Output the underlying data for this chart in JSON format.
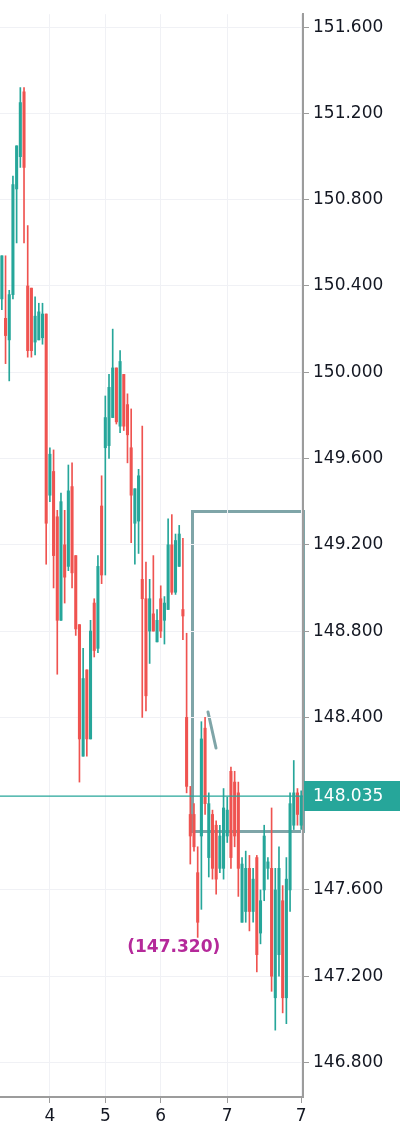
{
  "chart_data": {
    "type": "candlestick",
    "categories": [
      null,
      null,
      null,
      null,
      null,
      null,
      null,
      null,
      null,
      null,
      null,
      null,
      null,
      "4",
      null,
      null,
      null,
      null,
      null,
      null,
      null,
      null,
      null,
      null,
      null,
      null,
      null,
      null,
      "5",
      null,
      null,
      null,
      null,
      null,
      null,
      null,
      null,
      null,
      null,
      null,
      null,
      null,
      null,
      "6",
      null,
      null,
      null,
      null,
      null,
      null,
      null,
      null,
      null,
      null,
      null,
      null,
      null,
      null,
      null,
      null,
      null,
      "7",
      null,
      null,
      null,
      null,
      null,
      null,
      null,
      null,
      null,
      null,
      null,
      null,
      null,
      null,
      null,
      null,
      null,
      null,
      null,
      "7"
    ],
    "ohlc": [
      [
        150.34,
        150.54,
        150.29,
        150.54
      ],
      [
        150.25,
        150.54,
        150.04,
        150.17
      ],
      [
        150.15,
        150.38,
        149.96,
        150.36
      ],
      [
        150.36,
        150.91,
        150.34,
        150.87
      ],
      [
        150.85,
        151.05,
        150.6,
        151.05
      ],
      [
        151.0,
        151.32,
        150.95,
        151.25
      ],
      [
        151.3,
        151.32,
        150.6,
        150.95
      ],
      [
        150.4,
        150.68,
        150.07,
        150.1
      ],
      [
        150.39,
        150.39,
        150.07,
        150.1
      ],
      [
        150.14,
        150.35,
        150.08,
        150.26
      ],
      [
        150.15,
        150.32,
        150.15,
        150.28
      ],
      [
        150.16,
        150.32,
        150.13,
        150.27
      ],
      [
        150.27,
        150.27,
        149.11,
        149.3
      ],
      [
        149.43,
        149.65,
        149.4,
        149.62
      ],
      [
        149.54,
        149.64,
        149.0,
        149.15
      ],
      [
        149.33,
        149.36,
        148.6,
        148.85
      ],
      [
        148.85,
        149.44,
        148.85,
        149.4
      ],
      [
        149.2,
        149.36,
        148.93,
        149.05
      ],
      [
        149.1,
        149.57,
        149.08,
        149.45
      ],
      [
        149.47,
        149.58,
        149.0,
        149.07
      ],
      [
        149.15,
        149.15,
        148.78,
        148.81
      ],
      [
        148.83,
        148.83,
        148.1,
        148.3
      ],
      [
        148.22,
        148.72,
        148.22,
        148.58
      ],
      [
        148.62,
        148.62,
        148.22,
        148.3
      ],
      [
        148.3,
        148.85,
        148.3,
        148.8
      ],
      [
        148.93,
        148.95,
        148.68,
        148.71
      ],
      [
        148.72,
        149.15,
        148.7,
        149.1
      ],
      [
        149.38,
        149.52,
        149.02,
        149.06
      ],
      [
        149.65,
        149.89,
        149.06,
        149.79
      ],
      [
        149.66,
        149.99,
        149.6,
        149.93
      ],
      [
        149.79,
        150.2,
        149.79,
        150.02
      ],
      [
        150.02,
        150.02,
        149.76,
        149.77
      ],
      [
        149.75,
        150.1,
        149.72,
        150.05
      ],
      [
        149.99,
        149.99,
        149.73,
        149.75
      ],
      [
        149.85,
        149.9,
        149.58,
        149.71
      ],
      [
        149.65,
        149.83,
        149.21,
        149.43
      ],
      [
        149.3,
        149.46,
        149.11,
        149.46
      ],
      [
        149.31,
        149.55,
        149.16,
        149.52
      ],
      [
        149.04,
        149.75,
        148.4,
        148.95
      ],
      [
        148.95,
        149.12,
        148.43,
        148.5
      ],
      [
        148.8,
        149.04,
        148.65,
        148.95
      ],
      [
        148.88,
        149.15,
        148.8,
        148.8
      ],
      [
        148.75,
        148.9,
        148.75,
        148.85
      ],
      [
        148.95,
        149.01,
        148.77,
        148.8
      ],
      [
        148.85,
        148.96,
        148.74,
        148.93
      ],
      [
        148.9,
        149.32,
        148.9,
        149.2
      ],
      [
        149.2,
        149.34,
        148.97,
        148.98
      ],
      [
        148.98,
        149.25,
        148.97,
        149.22
      ],
      [
        149.1,
        149.29,
        149.1,
        149.25
      ],
      [
        148.9,
        149.23,
        148.76,
        148.87
      ],
      [
        148.4,
        148.79,
        148.05,
        148.08
      ],
      [
        147.95,
        148.08,
        147.72,
        147.85
      ],
      [
        147.95,
        148.0,
        147.78,
        147.8
      ],
      [
        147.68,
        147.8,
        147.38,
        147.45
      ],
      [
        147.85,
        148.38,
        147.51,
        148.3
      ],
      [
        148.35,
        148.4,
        147.95,
        148.0
      ],
      [
        147.75,
        148.05,
        147.66,
        148.0
      ],
      [
        147.95,
        147.97,
        147.65,
        147.7
      ],
      [
        147.9,
        147.92,
        147.58,
        147.65
      ],
      [
        147.7,
        147.9,
        147.68,
        147.85
      ],
      [
        147.7,
        148.07,
        147.65,
        147.98
      ],
      [
        147.85,
        148.03,
        147.82,
        147.97
      ],
      [
        148.15,
        148.17,
        147.7,
        147.75
      ],
      [
        148.1,
        148.15,
        147.8,
        147.85
      ],
      [
        148.05,
        148.1,
        147.57,
        147.7
      ],
      [
        147.45,
        147.75,
        147.45,
        147.72
      ],
      [
        147.5,
        147.78,
        147.45,
        147.7
      ],
      [
        147.7,
        147.76,
        147.41,
        147.5
      ],
      [
        147.5,
        147.7,
        147.45,
        147.65
      ],
      [
        147.75,
        147.76,
        147.22,
        147.3
      ],
      [
        147.4,
        147.6,
        147.35,
        147.55
      ],
      [
        147.6,
        147.9,
        147.55,
        147.85
      ],
      [
        147.7,
        147.75,
        147.65,
        147.73
      ],
      [
        147.7,
        147.98,
        147.13,
        147.2
      ],
      [
        147.1,
        147.7,
        146.95,
        147.6
      ],
      [
        147.3,
        147.8,
        147.2,
        147.7
      ],
      [
        147.55,
        147.62,
        147.03,
        147.1
      ],
      [
        147.1,
        147.75,
        146.98,
        147.65
      ],
      [
        147.6,
        148.05,
        147.5,
        148.0
      ],
      [
        147.9,
        148.2,
        147.88,
        148.05
      ],
      [
        148.05,
        148.07,
        147.9,
        147.95
      ],
      [
        147.9,
        148.06,
        147.88,
        148.035
      ]
    ],
    "colors": [
      "#26a69a",
      "#ef5350",
      "#26a69a",
      "#26a69a",
      "#26a69a",
      "#26a69a",
      "#ef5350",
      "#ef5350",
      "#ef5350",
      "#26a69a",
      "#26a69a",
      "#26a69a",
      "#ef5350",
      "#26a69a",
      "#ef5350",
      "#ef5350",
      "#26a69a",
      "#ef5350",
      "#26a69a",
      "#ef5350",
      "#ef5350",
      "#ef5350",
      "#26a69a",
      "#ef5350",
      "#26a69a",
      "#ef5350",
      "#26a69a",
      "#ef5350",
      "#26a69a",
      "#26a69a",
      "#26a69a",
      "#ef5350",
      "#26a69a",
      "#ef5350",
      "#ef5350",
      "#ef5350",
      "#26a69a",
      "#26a69a",
      "#ef5350",
      "#ef5350",
      "#26a69a",
      "#ef5350",
      "#26a69a",
      "#ef5350",
      "#26a69a",
      "#26a69a",
      "#ef5350",
      "#26a69a",
      "#26a69a",
      "#ef5350",
      "#ef5350",
      "#ef5350",
      "#ef5350",
      "#ef5350",
      "#26a69a",
      "#ef5350",
      "#26a69a",
      "#ef5350",
      "#ef5350",
      "#26a69a",
      "#26a69a",
      "#26a69a",
      "#ef5350",
      "#ef5350",
      "#ef5350",
      "#26a69a",
      "#26a69a",
      "#ef5350",
      "#26a69a",
      "#ef5350",
      "#26a69a",
      "#26a69a",
      "#26a69a",
      "#ef5350",
      "#26a69a",
      "#26a69a",
      "#ef5350",
      "#26a69a",
      "#26a69a",
      "#26a69a",
      "#ef5350",
      "#26a69a"
    ],
    "ylim": [
      146.64,
      151.66
    ],
    "yticks": [
      {
        "value": 146.8,
        "label": "146.800"
      },
      {
        "value": 147.2,
        "label": "147.200"
      },
      {
        "value": 147.6,
        "label": "147.600"
      },
      {
        "value": 148.4,
        "label": "148.400"
      },
      {
        "value": 148.8,
        "label": "148.800"
      },
      {
        "value": 149.2,
        "label": "149.200"
      },
      {
        "value": 149.6,
        "label": "149.600"
      },
      {
        "value": 150.0,
        "label": "150.000"
      },
      {
        "value": 150.4,
        "label": "150.400"
      },
      {
        "value": 150.8,
        "label": "150.800"
      },
      {
        "value": 151.2,
        "label": "151.200"
      },
      {
        "value": 151.6,
        "label": "151.600"
      }
    ],
    "grid": true,
    "ref_lines": [
      {
        "axis": "y",
        "value": 148.035,
        "label": "148.035",
        "color": "#26a69a"
      }
    ],
    "annotations": [
      "(147.320)"
    ]
  }
}
